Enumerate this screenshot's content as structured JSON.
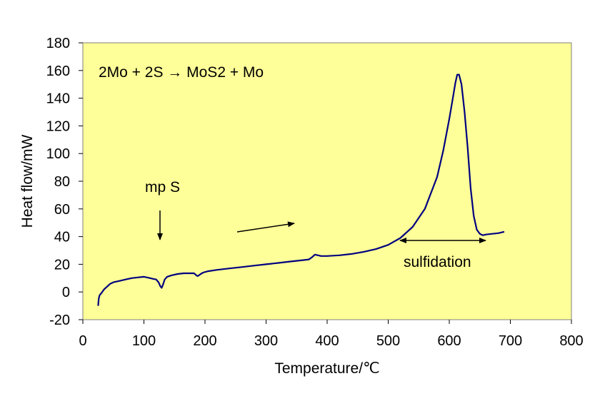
{
  "chart_data": {
    "type": "line",
    "title": "",
    "xlabel": "Temperature/℃",
    "ylabel": "Heat flow/mW",
    "xlim": [
      0,
      800
    ],
    "ylim": [
      -20,
      180
    ],
    "x_ticks": [
      "0",
      "100",
      "200",
      "300",
      "400",
      "500",
      "600",
      "700",
      "800"
    ],
    "y_ticks": [
      "-20",
      "0",
      "20",
      "40",
      "60",
      "80",
      "100",
      "120",
      "140",
      "160",
      "180"
    ],
    "grid": false,
    "legend": "none",
    "plot_background": "#FFFF99",
    "line_color": "#000080",
    "series": [
      {
        "x": [
          25,
          26,
          27,
          28,
          30,
          35,
          40,
          45,
          50,
          60,
          70,
          80,
          90,
          100,
          105,
          110,
          115,
          120,
          124,
          127,
          129,
          131,
          134,
          138,
          145,
          155,
          165,
          175,
          182,
          186,
          188,
          190,
          193,
          197,
          205,
          220,
          240,
          260,
          280,
          300,
          320,
          340,
          360,
          370,
          375,
          380,
          385,
          390,
          400,
          420,
          440,
          460,
          480,
          500,
          520,
          540,
          560,
          580,
          590,
          600,
          605,
          610,
          613,
          616,
          620,
          625,
          630,
          635,
          640,
          645,
          650,
          655,
          660,
          670,
          680,
          690
        ],
        "y": [
          -10,
          -5,
          -3,
          -2,
          -1,
          2,
          4,
          6,
          7,
          8,
          9,
          10,
          10.5,
          11,
          10.5,
          10,
          9.5,
          9,
          7,
          4,
          3,
          5,
          9,
          11,
          12,
          13,
          13.5,
          13.5,
          13.5,
          12,
          11.5,
          12,
          13,
          14,
          15,
          16,
          17,
          18,
          19,
          20,
          21,
          22,
          23,
          23.5,
          25,
          27,
          26.5,
          26,
          26,
          26.5,
          27.5,
          29,
          31,
          34,
          39,
          47,
          60,
          83,
          102,
          125,
          138,
          151,
          157,
          157,
          150,
          130,
          105,
          75,
          55,
          45,
          42,
          41,
          41.5,
          42,
          42.5,
          43.5
        ]
      }
    ],
    "annotations": {
      "reaction": "2Mo + 2S → MoS2 + Mo",
      "mp": "mp S",
      "sulfidation": "sulfidation"
    }
  }
}
